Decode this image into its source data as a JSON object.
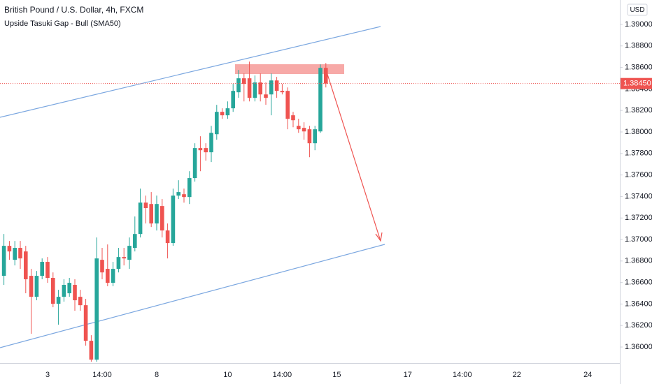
{
  "chart_data": {
    "type": "candlestick",
    "title": "British Pound / U.S. Dollar, 4h, FXCM",
    "subtitle": "Upside Tasuki Gap - Bull (SMA50)",
    "unit": "USD",
    "up_color": "#26a69a",
    "down_color": "#ef5350",
    "categories": [
      null,
      null,
      null,
      null,
      null,
      null,
      null,
      null,
      "3",
      null,
      null,
      null,
      null,
      null,
      null,
      null,
      null,
      null,
      "14:00",
      null,
      null,
      null,
      null,
      null,
      null,
      null,
      null,
      null,
      "8",
      null,
      null,
      null,
      null,
      null,
      null,
      null,
      null,
      null,
      null,
      null,
      null,
      "10",
      null,
      null,
      null,
      null,
      null,
      null,
      null,
      null,
      null,
      "14:00",
      null,
      null,
      null,
      null,
      null,
      null,
      null,
      null,
      null,
      "15",
      null,
      null,
      null,
      null,
      null,
      null,
      null,
      null,
      null,
      null,
      null,
      null,
      "17",
      null,
      null,
      null,
      null,
      null,
      null,
      null,
      null,
      null,
      "14:00",
      null,
      null,
      null,
      null,
      null,
      null,
      null,
      null,
      null,
      "22",
      null,
      null,
      null,
      null,
      null,
      null,
      null,
      null,
      null,
      null,
      null,
      null,
      "24"
    ],
    "open": [
      1.36662,
      1.36941,
      1.36811,
      1.36922,
      1.36889,
      1.36662,
      1.36467,
      1.36662,
      1.36792,
      1.36643,
      1.36402,
      1.36467,
      1.365,
      1.36578,
      1.36467,
      1.36389,
      1.36058,
      1.35883,
      1.36811,
      1.36727,
      1.36597,
      1.36727,
      1.36837,
      1.36811,
      1.36922,
      1.37051,
      1.37343,
      1.3733,
      1.37149,
      1.37311,
      1.37084,
      1.36967,
      1.37408,
      1.37421,
      1.37395,
      1.37571,
      1.3785,
      1.3785,
      1.37811,
      1.37979,
      1.38187,
      1.38155,
      1.3822,
      1.38369,
      1.38499,
      1.38499,
      1.38317,
      1.3846,
      1.38349,
      1.38349,
      1.38479,
      1.38382,
      1.38382,
      1.38155,
      1.38057,
      1.38038,
      1.38025,
      1.37895,
      1.38005,
      1.38596,
      null,
      null,
      null,
      null,
      null,
      null,
      null,
      null,
      null,
      null,
      null,
      null,
      null,
      null,
      null,
      null,
      null,
      null,
      null,
      null,
      null,
      null,
      null,
      null,
      null,
      null,
      null,
      null,
      null,
      null,
      null,
      null,
      null,
      null,
      null,
      null,
      null,
      null,
      null,
      null,
      null,
      null,
      null,
      null,
      null,
      null,
      null,
      null
    ],
    "high": [
      1.37051,
      1.36986,
      1.36986,
      1.36986,
      1.36941,
      1.36727,
      1.36707,
      1.36824,
      1.36837,
      1.36694,
      1.36532,
      1.3663,
      1.36643,
      1.3663,
      1.36532,
      1.36448,
      1.3611,
      1.37019,
      1.36922,
      1.36954,
      1.36792,
      1.36922,
      1.36922,
      1.37019,
      1.37214,
      1.37473,
      1.37408,
      1.37441,
      1.37408,
      1.37376,
      1.37149,
      1.37473,
      1.37551,
      1.37473,
      1.37635,
      1.37895,
      1.3796,
      1.37895,
      1.38057,
      1.38252,
      1.3822,
      1.38284,
      1.38447,
      1.38577,
      1.38544,
      1.38654,
      1.38525,
      1.38544,
      1.3846,
      1.38544,
      1.38512,
      1.38447,
      1.38414,
      1.38187,
      1.38122,
      1.3809,
      1.38057,
      1.38057,
      1.38628,
      1.38641,
      null,
      null,
      null,
      null,
      null,
      null,
      null,
      null,
      null,
      null,
      null,
      null,
      null,
      null,
      null,
      null,
      null,
      null,
      null,
      null,
      null,
      null,
      null,
      null,
      null,
      null,
      null,
      null,
      null,
      null,
      null,
      null,
      null,
      null,
      null,
      null,
      null,
      null,
      null,
      null,
      null,
      null,
      null,
      null,
      null,
      null,
      null,
      null
    ],
    "low": [
      1.36578,
      1.36811,
      1.36759,
      1.36727,
      1.365,
      1.36123,
      1.36435,
      1.3663,
      1.36597,
      1.3637,
      1.36208,
      1.36422,
      1.36467,
      1.36337,
      1.36337,
      1.36013,
      1.35864,
      1.35864,
      1.3663,
      1.36565,
      1.36565,
      1.36694,
      1.36759,
      1.36727,
      1.36889,
      1.37019,
      1.37149,
      1.37116,
      1.37084,
      1.37019,
      1.36824,
      1.36941,
      1.37376,
      1.37343,
      1.3733,
      1.37538,
      1.37635,
      1.37733,
      1.3772,
      1.37928,
      1.38122,
      1.38122,
      1.38187,
      1.38317,
      1.38284,
      1.38284,
      1.38284,
      1.38284,
      1.38252,
      1.38155,
      1.38317,
      1.38349,
      1.38025,
      1.38044,
      1.37992,
      1.37928,
      1.37765,
      1.3783,
      1.37992,
      1.38414,
      null,
      null,
      null,
      null,
      null,
      null,
      null,
      null,
      null,
      null,
      null,
      null,
      null,
      null,
      null,
      null,
      null,
      null,
      null,
      null,
      null,
      null,
      null,
      null,
      null,
      null,
      null,
      null,
      null,
      null,
      null,
      null,
      null,
      null,
      null,
      null,
      null,
      null,
      null,
      null,
      null,
      null,
      null,
      null,
      null,
      null,
      null,
      null
    ],
    "close": [
      1.36941,
      1.36889,
      1.36922,
      1.36824,
      1.3663,
      1.36467,
      1.36662,
      1.36792,
      1.36643,
      1.36402,
      1.36467,
      1.36578,
      1.36597,
      1.36435,
      1.36389,
      1.36058,
      1.35883,
      1.36824,
      1.36694,
      1.36597,
      1.36727,
      1.36837,
      1.36824,
      1.36941,
      1.37051,
      1.37343,
      1.37292,
      1.37149,
      1.3733,
      1.37084,
      1.36967,
      1.37408,
      1.37441,
      1.37395,
      1.37571,
      1.3785,
      1.3783,
      1.37811,
      1.37992,
      1.38187,
      1.38155,
      1.3822,
      1.38382,
      1.38499,
      1.38447,
      1.38317,
      1.3846,
      1.38349,
      1.38317,
      1.38479,
      1.38382,
      1.38369,
      1.38122,
      1.38109,
      1.38025,
      1.38005,
      1.37895,
      1.38025,
      1.38596,
      1.3845,
      null,
      null,
      null,
      null,
      null,
      null,
      null,
      null,
      null,
      null,
      null,
      null,
      null,
      null,
      null,
      null,
      null,
      null,
      null,
      null,
      null,
      null,
      null,
      null,
      null,
      null,
      null,
      null,
      null,
      null,
      null,
      null,
      null,
      null,
      null,
      null,
      null,
      null,
      null,
      null,
      null,
      null,
      null,
      null,
      null,
      null,
      null,
      null
    ],
    "current_price": {
      "value": 1.3845,
      "label": "1.38450"
    },
    "ylim": [
      1.35851,
      1.39227
    ],
    "yticks": [
      {
        "value": 1.36,
        "label": "1.36000"
      },
      {
        "value": 1.362,
        "label": "1.36200"
      },
      {
        "value": 1.364,
        "label": "1.36400"
      },
      {
        "value": 1.366,
        "label": "1.36600"
      },
      {
        "value": 1.368,
        "label": "1.36800"
      },
      {
        "value": 1.37,
        "label": "1.37000"
      },
      {
        "value": 1.372,
        "label": "1.37200"
      },
      {
        "value": 1.374,
        "label": "1.37400"
      },
      {
        "value": 1.376,
        "label": "1.37600"
      },
      {
        "value": 1.378,
        "label": "1.37800"
      },
      {
        "value": 1.38,
        "label": "1.38000"
      },
      {
        "value": 1.382,
        "label": "1.38200"
      },
      {
        "value": 1.384,
        "label": "1.38400"
      },
      {
        "value": 1.386,
        "label": "1.38600"
      },
      {
        "value": 1.388,
        "label": "1.38800"
      },
      {
        "value": 1.39,
        "label": "1.39000"
      }
    ]
  }
}
